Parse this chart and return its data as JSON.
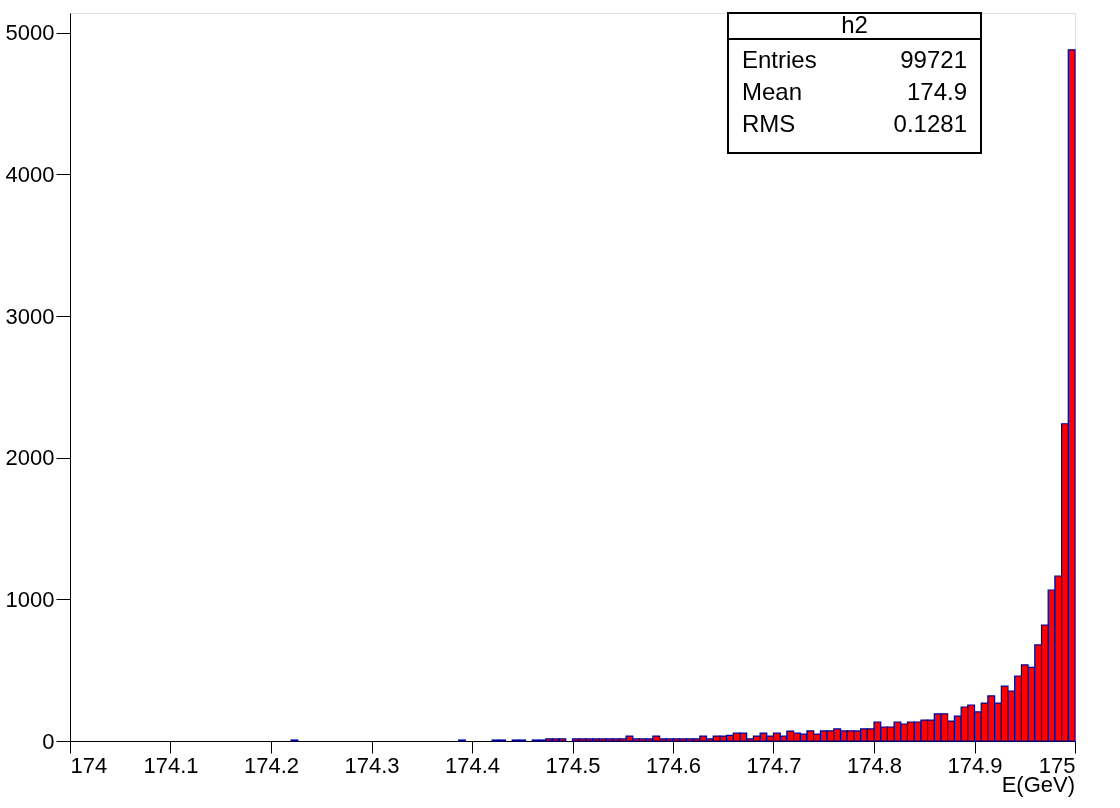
{
  "chart_data": {
    "type": "histogram",
    "xlabel": "E(GeV)",
    "annotations": [
      "h2",
      "Entries",
      "99721",
      "Mean",
      "174.9",
      "RMS",
      "0.1281"
    ],
    "bins": [
      174,
      174.0067,
      174.0133,
      174.02,
      174.0267,
      174.0333,
      174.04,
      174.0467,
      174.0533,
      174.06,
      174.0667,
      174.0733,
      174.08,
      174.0867,
      174.0933,
      174.1,
      174.1067,
      174.1133,
      174.12,
      174.1267,
      174.1333,
      174.14,
      174.1467,
      174.1533,
      174.16,
      174.1667,
      174.1733,
      174.18,
      174.1867,
      174.1933,
      174.2,
      174.2067,
      174.2133,
      174.22,
      174.2267,
      174.2333,
      174.24,
      174.2467,
      174.2533,
      174.26,
      174.2667,
      174.2733,
      174.28,
      174.2867,
      174.2933,
      174.3,
      174.3067,
      174.3133,
      174.32,
      174.3267,
      174.3333,
      174.34,
      174.3467,
      174.3533,
      174.36,
      174.3667,
      174.3733,
      174.38,
      174.3867,
      174.3933,
      174.4,
      174.4067,
      174.4133,
      174.42,
      174.4267,
      174.4333,
      174.44,
      174.4467,
      174.4533,
      174.46,
      174.4667,
      174.4733,
      174.48,
      174.4867,
      174.4933,
      174.5,
      174.5067,
      174.5133,
      174.52,
      174.5267,
      174.5333,
      174.54,
      174.5467,
      174.5533,
      174.56,
      174.5667,
      174.5733,
      174.58,
      174.5867,
      174.5933,
      174.6,
      174.6067,
      174.6133,
      174.62,
      174.6267,
      174.6333,
      174.64,
      174.6467,
      174.6533,
      174.66,
      174.6667,
      174.6733,
      174.68,
      174.6867,
      174.6933,
      174.7,
      174.7067,
      174.7133,
      174.72,
      174.7267,
      174.7333,
      174.74,
      174.7467,
      174.7533,
      174.76,
      174.7667,
      174.7733,
      174.78,
      174.7867,
      174.7933,
      174.8,
      174.8067,
      174.8133,
      174.82,
      174.8267,
      174.8333,
      174.84,
      174.8467,
      174.8533,
      174.86,
      174.8667,
      174.8733,
      174.88,
      174.8867,
      174.8933,
      174.9,
      174.9067,
      174.9133,
      174.92,
      174.9267,
      174.9333,
      174.94,
      174.9467,
      174.9533,
      174.96,
      174.9667,
      174.9733,
      174.98,
      174.9867,
      174.9933,
      175
    ],
    "values": [
      0,
      0,
      0,
      0,
      0,
      0,
      0,
      0,
      0,
      0,
      0,
      0,
      0,
      0,
      0,
      0,
      0,
      0,
      0,
      0,
      0,
      0,
      0,
      0,
      0,
      0,
      0,
      0,
      0,
      0,
      0,
      0,
      0,
      7,
      0,
      0,
      0,
      0,
      0,
      0,
      0,
      0,
      0,
      0,
      0,
      0,
      0,
      0,
      0,
      0,
      0,
      0,
      0,
      0,
      0,
      0,
      0,
      0,
      7,
      0,
      0,
      0,
      0,
      7,
      7,
      0,
      7,
      7,
      0,
      7,
      7,
      15,
      15,
      15,
      0,
      15,
      15,
      15,
      15,
      15,
      15,
      15,
      15,
      35,
      15,
      15,
      15,
      35,
      15,
      15,
      15,
      15,
      15,
      15,
      35,
      15,
      35,
      35,
      40,
      55,
      55,
      15,
      35,
      55,
      35,
      55,
      35,
      70,
      55,
      49,
      71,
      49,
      71,
      71,
      85,
      71,
      71,
      71,
      85,
      85,
      134,
      99,
      99,
      134,
      120,
      134,
      134,
      148,
      148,
      191,
      191,
      141,
      176,
      240,
      254,
      205,
      268,
      318,
      268,
      388,
      353,
      459,
      537,
      520,
      678,
      819,
      1066,
      1165,
      2240,
      4880
    ],
    "color": "#ff0000",
    "xlim": [
      174,
      175
    ],
    "xticks": [
      174,
      174.1,
      174.2,
      174.3,
      174.4,
      174.5,
      174.6,
      174.7,
      174.8,
      174.9,
      175
    ],
    "ylim": [
      0,
      5140
    ],
    "yticks": [
      0,
      1000,
      2000,
      3000,
      4000,
      5000
    ],
    "grid": false
  }
}
